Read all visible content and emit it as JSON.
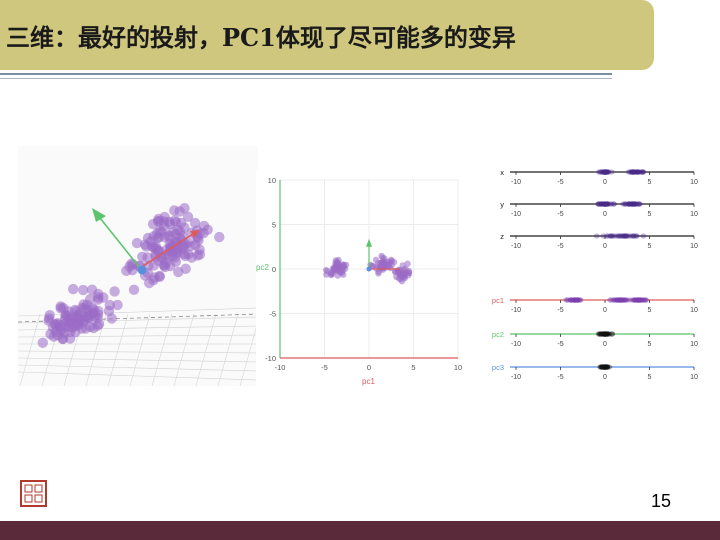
{
  "slide": {
    "title": "三维：最好的投射，PC1体现了尽可能多的变异",
    "page_number": "15"
  },
  "colors": {
    "title_band": "#cfc77e",
    "bottom_band": "#5a2a3a",
    "points": "#9b6cc6",
    "pc1": "#e05a5a",
    "pc2": "#5cc46e",
    "pc3": "#5a8fe0"
  },
  "icons": {
    "seal": "red-seal-logo"
  },
  "chart_data": [
    {
      "type": "scatter",
      "title": "",
      "note": "3D scatter with principal-component arrows",
      "axes": []
    },
    {
      "type": "scatter",
      "title": "",
      "xlabel": "pc1",
      "ylabel": "pc2",
      "xlim": [
        -10,
        10
      ],
      "ylim": [
        -10,
        10
      ],
      "xticks": [
        "-10",
        "-5",
        "0",
        "5",
        "10"
      ],
      "yticks": [
        "10",
        "5",
        "0",
        "-5",
        "-10"
      ]
    },
    {
      "type": "strip",
      "title": "",
      "ticks": [
        "-10",
        "-5",
        "0",
        "5",
        "10"
      ],
      "rows_top": [
        {
          "label": "x",
          "color": "#222222"
        },
        {
          "label": "y",
          "color": "#222222"
        },
        {
          "label": "z",
          "color": "#222222"
        }
      ],
      "rows_bottom": [
        {
          "label": "pc1",
          "color": "#e05a5a"
        },
        {
          "label": "pc2",
          "color": "#5cc46e"
        },
        {
          "label": "pc3",
          "color": "#5a8fe0"
        }
      ]
    }
  ]
}
